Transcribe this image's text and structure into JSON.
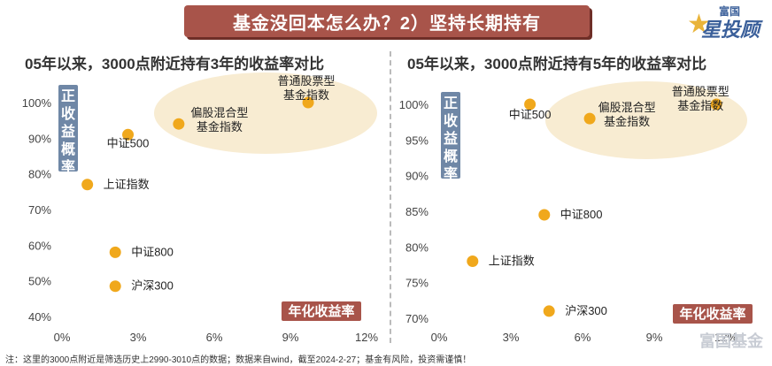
{
  "banner": {
    "title": "基金没回本怎么办？2）坚持长期持有"
  },
  "logo": {
    "top": "富国",
    "main": "星投顾"
  },
  "watermark": "富国基金",
  "note": "注：这里的3000点附近是筛选历史上2990-3010点的数据；数据来自wind，截至2024-2-27；基金有风险，投资需谨慎！",
  "colors": {
    "point": "#f0a81c",
    "ylabel_bg": "#6f87a6",
    "xlabel_bg": "#a8544a",
    "ellipse": "#f8ecd2"
  },
  "chart_data": [
    {
      "type": "scatter",
      "title": "05年以来，3000点附近持有3年的收益率对比",
      "xlabel": "年化收益率",
      "ylabel": "正收益概率",
      "xlim": [
        0,
        12
      ],
      "ylim": [
        40,
        100
      ],
      "x_ticks": [
        "0%",
        "3%",
        "6%",
        "9%",
        "12%"
      ],
      "y_ticks": [
        "40%",
        "50%",
        "60%",
        "70%",
        "80%",
        "90%",
        "100%"
      ],
      "points": [
        {
          "label": "普通股票型基金指数",
          "x": 9.7,
          "y": 100
        },
        {
          "label": "偏股混合型基金指数",
          "x": 4.6,
          "y": 94
        },
        {
          "label": "中证500",
          "x": 2.6,
          "y": 91
        },
        {
          "label": "上证指数",
          "x": 1.0,
          "y": 77
        },
        {
          "label": "中证800",
          "x": 2.1,
          "y": 58
        },
        {
          "label": "沪深300",
          "x": 2.1,
          "y": 48.5
        }
      ]
    },
    {
      "type": "scatter",
      "title": "05年以来，3000点附近持有5年的收益率对比",
      "xlabel": "年化收益率",
      "ylabel": "正收益概率",
      "xlim": [
        0,
        12
      ],
      "ylim": [
        70,
        100
      ],
      "x_ticks": [
        "0%",
        "3%",
        "6%",
        "9%",
        "12%"
      ],
      "y_ticks": [
        "70%",
        "75%",
        "80%",
        "85%",
        "90%",
        "95%",
        "100%"
      ],
      "points": [
        {
          "label": "中证500",
          "x": 3.8,
          "y": 100
        },
        {
          "label": "偏股混合型基金指数",
          "x": 6.3,
          "y": 98
        },
        {
          "label": "普通股票型基金指数",
          "x": 11.6,
          "y": 100
        },
        {
          "label": "中证800",
          "x": 4.4,
          "y": 84.5
        },
        {
          "label": "上证指数",
          "x": 1.4,
          "y": 78
        },
        {
          "label": "沪深300",
          "x": 4.6,
          "y": 71
        }
      ]
    }
  ]
}
